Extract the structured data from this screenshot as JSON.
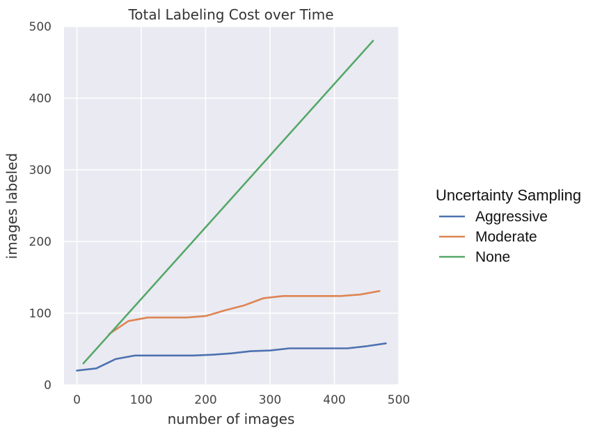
{
  "chart_data": {
    "type": "line",
    "title": "Total Labeling Cost over Time",
    "xlabel": "number of images",
    "ylabel": "images labeled",
    "xlim": [
      -20,
      500
    ],
    "ylim": [
      0,
      500
    ],
    "xticks": [
      0,
      100,
      200,
      300,
      400,
      500
    ],
    "yticks": [
      0,
      100,
      200,
      300,
      400,
      500
    ],
    "grid": true,
    "legend": {
      "title": "Uncertainty Sampling",
      "placement": "right, outside plot"
    },
    "series": [
      {
        "name": "Aggressive",
        "color": "#4c72b0",
        "x": [
          0,
          30,
          60,
          90,
          120,
          150,
          180,
          210,
          240,
          270,
          300,
          330,
          360,
          390,
          420,
          450,
          480
        ],
        "y": [
          20,
          23,
          36,
          41,
          41,
          41,
          41,
          42,
          44,
          47,
          48,
          51,
          51,
          51,
          51,
          54,
          58
        ]
      },
      {
        "name": "Moderate",
        "color": "#dd8452",
        "x": [
          50,
          80,
          110,
          140,
          170,
          200,
          230,
          260,
          290,
          320,
          350,
          380,
          410,
          440,
          470
        ],
        "y": [
          71,
          89,
          94,
          94,
          94,
          96,
          104,
          111,
          121,
          124,
          124,
          124,
          124,
          126,
          131
        ]
      },
      {
        "name": "None",
        "color": "#55a868",
        "x": [
          10,
          460
        ],
        "y": [
          30,
          480
        ]
      }
    ]
  }
}
